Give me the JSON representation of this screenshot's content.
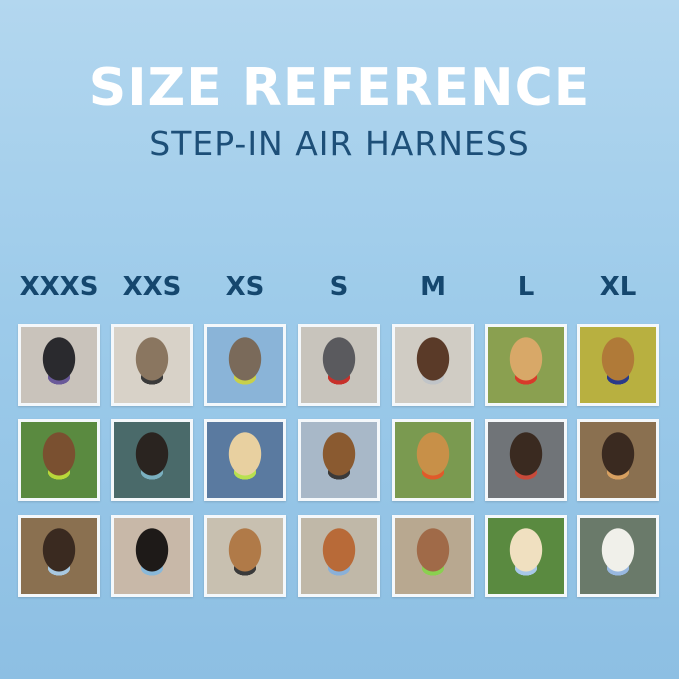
{
  "header": {
    "title": "SIZE REFERENCE",
    "subtitle": "STEP-IN AIR HARNESS"
  },
  "sizes": [
    "XXXS",
    "XXS",
    "XS",
    "S",
    "M",
    "L",
    "XL"
  ],
  "colors": {
    "title": "#ffffff",
    "subtitle": "#1d4f78",
    "size_label": "#15476e",
    "background": "#9dcbea"
  },
  "photo_colors": [
    [
      "#2a2a2e",
      "#6a5a9a",
      "#c9c3bb"
    ],
    [
      "#8a7660",
      "#3a3a3a",
      "#d8d2c8"
    ],
    [
      "#7a6a5a",
      "#c8d04a",
      "#8ab4d8"
    ],
    [
      "#5a5a5e",
      "#c8302a",
      "#c8c4bc"
    ],
    [
      "#5a3a28",
      "#c0c4c8",
      "#d0ccc4"
    ],
    [
      "#d8a868",
      "#d83a2a",
      "#8aa050"
    ],
    [
      "#b07a38",
      "#2a3a8a",
      "#b8b040"
    ],
    [
      "#7a5030",
      "#b8d83a",
      "#5a8a40"
    ],
    [
      "#2a2420",
      "#7ab0c0",
      "#4a6a6a"
    ],
    [
      "#e8d0a0",
      "#b8e050",
      "#5a7aa0"
    ],
    [
      "#8a5a30",
      "#3a3a3a",
      "#a8b8c8"
    ],
    [
      "#c89048",
      "#e05a2a",
      "#7a9a50"
    ],
    [
      "#3a2a20",
      "#c84a3a",
      "#707478"
    ],
    [
      "#3a2a20",
      "#d8a060",
      "#8a7050"
    ],
    [
      "#3a2a20",
      "#a8c8e0",
      "#8a7050"
    ],
    [
      "#1e1a18",
      "#8ab8d8",
      "#c8b8a8"
    ],
    [
      "#b07a48",
      "#3a3a3a",
      "#c8c0b0"
    ],
    [
      "#b86a38",
      "#8ab0d8",
      "#c0b8a8"
    ],
    [
      "#a06a48",
      "#8ad050",
      "#b8a890"
    ],
    [
      "#f0e0c0",
      "#a8c8e8",
      "#5a8a40"
    ],
    [
      "#f0f0ea",
      "#98b8e0",
      "#6a7a6a"
    ]
  ]
}
